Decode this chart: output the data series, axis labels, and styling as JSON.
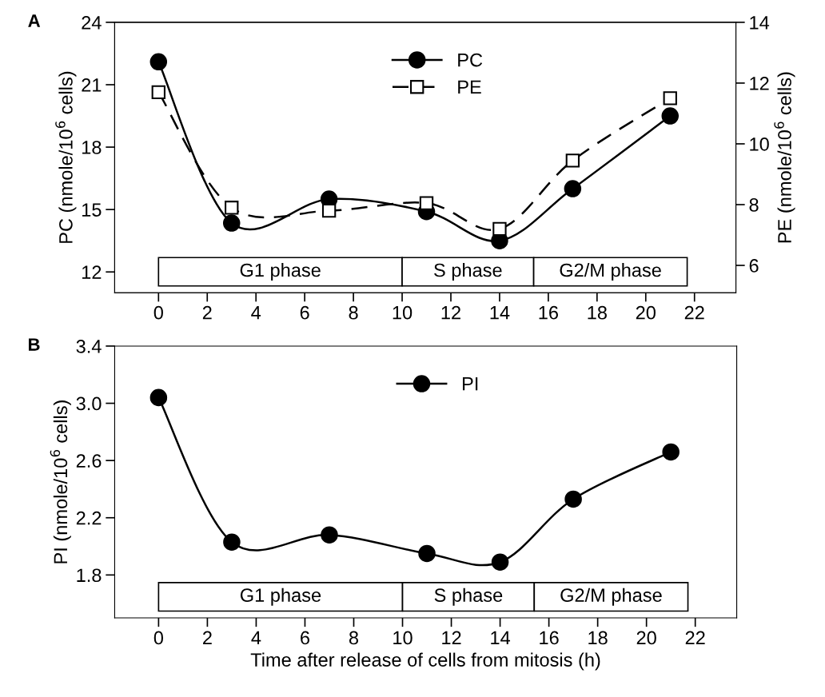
{
  "chart_data": [
    {
      "type": "line",
      "title": "A",
      "ylabel": "PC (nmole/10$^{6}$ cells)",
      "y2label": "PE (nmole/10$^{6}$ cells)",
      "x": [
        0,
        3,
        7,
        11,
        14,
        17,
        21
      ],
      "series": [
        {
          "name": "PC",
          "color": "#000000",
          "marker": "circle",
          "line_style": "solid",
          "values": [
            22.1,
            14.35,
            15.5,
            14.9,
            13.5,
            16.0,
            19.5
          ]
        },
        {
          "name": "PE",
          "color": "#000000",
          "marker": "square",
          "line_style": "dashed",
          "axis": "y2",
          "values": [
            11.7,
            7.9,
            7.8,
            8.05,
            7.2,
            9.45,
            11.5
          ]
        }
      ],
      "xlim": [
        -1.8,
        23.7
      ],
      "xticks": [
        0,
        2,
        4,
        6,
        8,
        10,
        12,
        14,
        16,
        18,
        20,
        22
      ],
      "ylim": [
        11,
        24
      ],
      "yticks": [
        12,
        15,
        18,
        21,
        24
      ],
      "y2lim": [
        5.1,
        14
      ],
      "y2ticks": [
        6,
        8,
        10,
        12,
        14
      ],
      "bands": [
        {
          "axis": "x",
          "from": 0,
          "to": 10,
          "label": "G1 phase"
        },
        {
          "axis": "x",
          "from": 10,
          "to": 15.4,
          "label": "S phase"
        },
        {
          "axis": "x",
          "from": 15.4,
          "to": 21.7,
          "label": "G2/M phase"
        }
      ],
      "legend": "top",
      "grid": false
    },
    {
      "type": "line",
      "title": "B",
      "ylabel": "PI (nmole/10$^{6}$ cells)",
      "xlabel": "Time after release of cells from mitosis (h)",
      "x": [
        0,
        3,
        7,
        11,
        14,
        17,
        21
      ],
      "series": [
        {
          "name": "PI",
          "color": "#000000",
          "marker": "circle",
          "line_style": "solid",
          "values": [
            3.04,
            2.03,
            2.08,
            1.95,
            1.89,
            2.33,
            2.66
          ]
        }
      ],
      "xlim": [
        -1.8,
        23.7
      ],
      "xticks": [
        0,
        2,
        4,
        6,
        8,
        10,
        12,
        14,
        16,
        18,
        20,
        22
      ],
      "ylim": [
        1.5,
        3.4
      ],
      "yticks": [
        1.8,
        2.2,
        2.6,
        {
          "value": 3.0,
          "label": "3.0"
        },
        3.4
      ],
      "bands": [
        {
          "axis": "x",
          "from": 0,
          "to": 10,
          "label": "G1 phase"
        },
        {
          "axis": "x",
          "from": 10,
          "to": 15.4,
          "label": "S phase"
        },
        {
          "axis": "x",
          "from": 15.4,
          "to": 21.7,
          "label": "G2/M phase"
        }
      ],
      "legend": "top",
      "grid": false
    }
  ]
}
